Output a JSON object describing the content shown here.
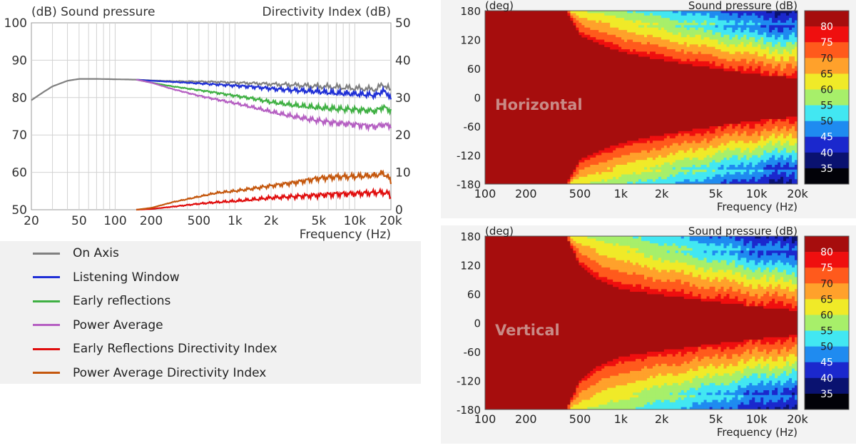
{
  "colors": {
    "on_axis": "#808080",
    "listening_window": "#1f2fd6",
    "early_reflections": "#3fb043",
    "power_average": "#b55fc2",
    "early_reflections_di": "#e00d0d",
    "power_average_di": "#c4570d",
    "grid": "#d2d2d2"
  },
  "chart_data": [
    {
      "type": "line",
      "title_left": "(dB)  Sound pressure",
      "title_right": "Directivity Index  (dB)",
      "xlabel": "Frequency  (Hz)",
      "x_scale": "log",
      "xlim": [
        20,
        20000
      ],
      "ylim_left": [
        50,
        100
      ],
      "ylim_right": [
        0,
        50
      ],
      "xticks": [
        {
          "v": 20,
          "label": "20"
        },
        {
          "v": 50,
          "label": "50"
        },
        {
          "v": 100,
          "label": "100"
        },
        {
          "v": 200,
          "label": "200"
        },
        {
          "v": 500,
          "label": "500"
        },
        {
          "v": 1000,
          "label": "1k"
        },
        {
          "v": 2000,
          "label": "2k"
        },
        {
          "v": 5000,
          "label": "5k"
        },
        {
          "v": 10000,
          "label": "10k"
        },
        {
          "v": 20000,
          "label": "20k"
        }
      ],
      "yticks_left": [
        "50",
        "60",
        "70",
        "80",
        "90",
        "100"
      ],
      "yticks_right": [
        "0",
        "10",
        "20",
        "30",
        "40",
        "50"
      ],
      "grid": true,
      "legend_position": "below",
      "series": [
        {
          "name": "On Axis",
          "axis": "left",
          "color_key": "on_axis",
          "points": [
            [
              20,
              79.3
            ],
            [
              25,
              81.4
            ],
            [
              30,
              83.0
            ],
            [
              40,
              84.5
            ],
            [
              50,
              85.0
            ],
            [
              70,
              85.0
            ],
            [
              100,
              84.9
            ],
            [
              150,
              84.8
            ],
            [
              200,
              84.6
            ],
            [
              300,
              84.4
            ],
            [
              500,
              84.3
            ],
            [
              700,
              84.2
            ],
            [
              1000,
              84.0
            ],
            [
              1500,
              83.8
            ],
            [
              2000,
              83.6
            ],
            [
              3000,
              83.4
            ],
            [
              5000,
              83.0
            ],
            [
              7000,
              82.8
            ],
            [
              10000,
              82.5
            ],
            [
              15000,
              82.2
            ],
            [
              17000,
              83.5
            ],
            [
              19000,
              82.8
            ],
            [
              20000,
              81.5
            ]
          ]
        },
        {
          "name": "Listening Window",
          "axis": "left",
          "color_key": "listening_window",
          "points": [
            [
              150,
              84.8
            ],
            [
              200,
              84.5
            ],
            [
              300,
              84.2
            ],
            [
              500,
              83.8
            ],
            [
              700,
              83.5
            ],
            [
              1000,
              83.2
            ],
            [
              1500,
              82.8
            ],
            [
              2000,
              82.4
            ],
            [
              3000,
              82.0
            ],
            [
              5000,
              81.6
            ],
            [
              7000,
              81.2
            ],
            [
              10000,
              81.0
            ],
            [
              15000,
              80.6
            ],
            [
              17000,
              81.8
            ],
            [
              19000,
              81.0
            ],
            [
              20000,
              79.5
            ]
          ]
        },
        {
          "name": "Early reflections",
          "axis": "left",
          "color_key": "early_reflections",
          "points": [
            [
              150,
              84.8
            ],
            [
              200,
              84.0
            ],
            [
              300,
              83.0
            ],
            [
              500,
              82.0
            ],
            [
              700,
              81.3
            ],
            [
              1000,
              80.5
            ],
            [
              1500,
              79.6
            ],
            [
              2000,
              78.8
            ],
            [
              3000,
              78.0
            ],
            [
              5000,
              77.3
            ],
            [
              7000,
              77.0
            ],
            [
              10000,
              76.8
            ],
            [
              15000,
              76.4
            ],
            [
              17000,
              77.5
            ],
            [
              19000,
              76.9
            ],
            [
              20000,
              76.5
            ]
          ]
        },
        {
          "name": "Power Average",
          "axis": "left",
          "color_key": "power_average",
          "points": [
            [
              150,
              84.8
            ],
            [
              200,
              84.0
            ],
            [
              300,
              82.3
            ],
            [
              500,
              80.5
            ],
            [
              700,
              79.5
            ],
            [
              1000,
              78.5
            ],
            [
              1500,
              77.2
            ],
            [
              2000,
              76.2
            ],
            [
              3000,
              75.0
            ],
            [
              5000,
              73.8
            ],
            [
              7000,
              73.2
            ],
            [
              10000,
              72.8
            ],
            [
              15000,
              72.2
            ],
            [
              17000,
              72.8
            ],
            [
              19000,
              72.5
            ],
            [
              20000,
              72.5
            ]
          ]
        },
        {
          "name": "Early Reflections Directivity Index",
          "axis": "right",
          "color_key": "early_reflections_di",
          "points": [
            [
              150,
              0.0
            ],
            [
              200,
              0.2
            ],
            [
              300,
              0.8
            ],
            [
              500,
              1.6
            ],
            [
              700,
              2.0
            ],
            [
              1000,
              2.3
            ],
            [
              1500,
              2.8
            ],
            [
              2000,
              3.2
            ],
            [
              3000,
              3.5
            ],
            [
              5000,
              3.9
            ],
            [
              7000,
              4.2
            ],
            [
              10000,
              4.3
            ],
            [
              15000,
              4.6
            ],
            [
              17000,
              4.6
            ],
            [
              19000,
              4.4
            ],
            [
              20000,
              3.3
            ]
          ]
        },
        {
          "name": "Power Average Directivity Index",
          "axis": "right",
          "color_key": "power_average_di",
          "points": [
            [
              150,
              0.0
            ],
            [
              200,
              0.5
            ],
            [
              300,
              2.0
            ],
            [
              500,
              3.5
            ],
            [
              700,
              4.5
            ],
            [
              1000,
              5.0
            ],
            [
              1500,
              5.8
            ],
            [
              2000,
              6.4
            ],
            [
              3000,
              7.2
            ],
            [
              5000,
              8.4
            ],
            [
              7000,
              8.8
            ],
            [
              10000,
              8.9
            ],
            [
              15000,
              9.2
            ],
            [
              17000,
              9.8
            ],
            [
              19000,
              8.8
            ],
            [
              20000,
              7.3
            ]
          ]
        }
      ]
    },
    {
      "type": "heatmap",
      "panel_label": "Horizontal",
      "title_left": "(deg)",
      "title_right": "Sound pressure  (dB)",
      "xlabel": "Frequency  (Hz)",
      "x_scale": "log",
      "xlim": [
        100,
        20000
      ],
      "ylim": [
        -180,
        180
      ],
      "yticks": [
        "180",
        "120",
        "60",
        "0",
        "-60",
        "-120",
        "-180"
      ],
      "xticks": [
        {
          "v": 100,
          "label": "100"
        },
        {
          "v": 200,
          "label": "200"
        },
        {
          "v": 500,
          "label": "500"
        },
        {
          "v": 1000,
          "label": "1k"
        },
        {
          "v": 2000,
          "label": "2k"
        },
        {
          "v": 5000,
          "label": "5k"
        },
        {
          "v": 10000,
          "label": "10k"
        },
        {
          "v": 20000,
          "label": "20k"
        }
      ],
      "colorbar_levels": [
        "80",
        "75",
        "70",
        "65",
        "60",
        "55",
        "50",
        "45",
        "40",
        "35"
      ],
      "colorbar_colors": [
        "#a60d0d",
        "#ef0f0f",
        "#ff5a1c",
        "#ffa12b",
        "#f0ea28",
        "#a7ef6a",
        "#42e7f2",
        "#1f8bf0",
        "#1b28cd",
        "#0a1270",
        "#020208"
      ],
      "beam_half_width": [
        {
          "freq": 100,
          "deg": 180
        },
        {
          "freq": 400,
          "deg": 178
        },
        {
          "freq": 500,
          "deg": 130
        },
        {
          "freq": 700,
          "deg": 110
        },
        {
          "freq": 1000,
          "deg": 95
        },
        {
          "freq": 2000,
          "deg": 78
        },
        {
          "freq": 5000,
          "deg": 60
        },
        {
          "freq": 10000,
          "deg": 48
        },
        {
          "freq": 20000,
          "deg": 40
        }
      ]
    },
    {
      "type": "heatmap",
      "panel_label": "Vertical",
      "title_left": "(deg)",
      "title_right": "Sound pressure  (dB)",
      "xlabel": "Frequency  (Hz)",
      "x_scale": "log",
      "xlim": [
        100,
        20000
      ],
      "ylim": [
        -180,
        180
      ],
      "yticks": [
        "180",
        "120",
        "60",
        "0",
        "-60",
        "-120",
        "-180"
      ],
      "xticks": [
        {
          "v": 100,
          "label": "100"
        },
        {
          "v": 200,
          "label": "200"
        },
        {
          "v": 500,
          "label": "500"
        },
        {
          "v": 1000,
          "label": "1k"
        },
        {
          "v": 2000,
          "label": "2k"
        },
        {
          "v": 5000,
          "label": "5k"
        },
        {
          "v": 10000,
          "label": "10k"
        },
        {
          "v": 20000,
          "label": "20k"
        }
      ],
      "colorbar_levels": [
        "80",
        "75",
        "70",
        "65",
        "60",
        "55",
        "50",
        "45",
        "40",
        "35"
      ],
      "colorbar_colors": [
        "#a60d0d",
        "#ef0f0f",
        "#ff5a1c",
        "#ffa12b",
        "#f0ea28",
        "#a7ef6a",
        "#42e7f2",
        "#1f8bf0",
        "#1b28cd",
        "#0a1270",
        "#020208"
      ],
      "beam_half_width": [
        {
          "freq": 100,
          "deg": 180
        },
        {
          "freq": 400,
          "deg": 178
        },
        {
          "freq": 500,
          "deg": 118
        },
        {
          "freq": 700,
          "deg": 88
        },
        {
          "freq": 1000,
          "deg": 70
        },
        {
          "freq": 2000,
          "deg": 58
        },
        {
          "freq": 5000,
          "deg": 44
        },
        {
          "freq": 10000,
          "deg": 34
        },
        {
          "freq": 20000,
          "deg": 26
        }
      ]
    }
  ]
}
